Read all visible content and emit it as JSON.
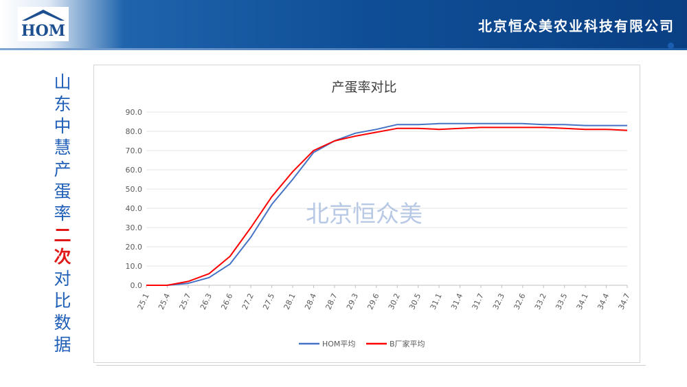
{
  "header": {
    "logo_text": "HOM",
    "company": "北京恒众美农业科技有限公司"
  },
  "side_title": [
    {
      "char": "山",
      "highlight": false
    },
    {
      "char": "东",
      "highlight": false
    },
    {
      "char": "中",
      "highlight": false
    },
    {
      "char": "慧",
      "highlight": false
    },
    {
      "char": "产",
      "highlight": false
    },
    {
      "char": "蛋",
      "highlight": false
    },
    {
      "char": "率",
      "highlight": false
    },
    {
      "char": "二",
      "highlight": true
    },
    {
      "char": "次",
      "highlight": true
    },
    {
      "char": "对",
      "highlight": false
    },
    {
      "char": "比",
      "highlight": false
    },
    {
      "char": "数",
      "highlight": false
    },
    {
      "char": "据",
      "highlight": false
    }
  ],
  "colors": {
    "hom": "#4472c4",
    "b_factory": "#ff0000",
    "side_blue": "#1f5fb8",
    "side_red": "#e01818"
  },
  "chart_data": {
    "type": "line",
    "title": "产蛋率对比",
    "watermark": "北京恒众美",
    "ylim": [
      0,
      90
    ],
    "yticks": [
      "0.0",
      "10.0",
      "20.0",
      "30.0",
      "40.0",
      "50.0",
      "60.0",
      "70.0",
      "80.0",
      "90.0"
    ],
    "x": [
      "25.1",
      "25.4",
      "25.7",
      "26.3",
      "26.6",
      "27.2",
      "27.5",
      "28.1",
      "28.4",
      "28.7",
      "29.3",
      "29.6",
      "30.2",
      "30.5",
      "31.1",
      "31.4",
      "31.7",
      "32.3",
      "32.6",
      "33.2",
      "33.5",
      "34.1",
      "34.4",
      "34.7"
    ],
    "series": [
      {
        "name": "HOM平均",
        "values": [
          0,
          0,
          1,
          4,
          11,
          25,
          42,
          55,
          69,
          75,
          79,
          81,
          83.5,
          83.5,
          84,
          84,
          84,
          84,
          84,
          83.5,
          83.5,
          83,
          83,
          83
        ]
      },
      {
        "name": "B厂家平均",
        "values": [
          0,
          0,
          2,
          6,
          15,
          30,
          46,
          59,
          70,
          75,
          77.5,
          79.5,
          81.5,
          81.5,
          81,
          81.5,
          82,
          82,
          82,
          82,
          81.5,
          81,
          81,
          80.5
        ]
      }
    ]
  }
}
